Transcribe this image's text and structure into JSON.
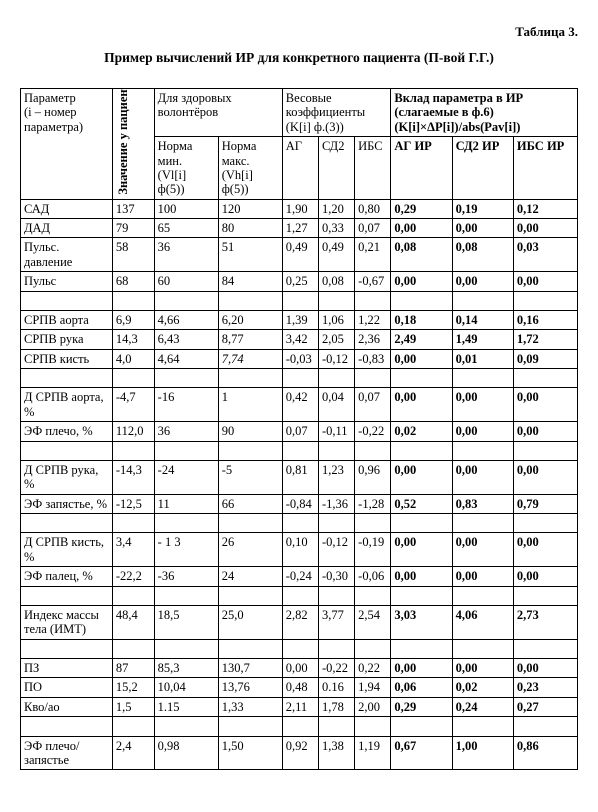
{
  "label": "Таблица 3.",
  "caption": "Пример вычислений ИР для конкретного пациента (П-вой Г.Г.)",
  "head": {
    "param": "Параметр\n(i – номер параметра)",
    "value": "Значение у пациента",
    "healthy": "Для здоровых волонтёров",
    "normMin": "Норма мин.\n(Vl[i]\nф(5))",
    "normMax": "Норма макс.\n(Vh[i]\nф(5))",
    "weights": "Весовые коэффициенты (K[i] ф.(3))",
    "w1": "АГ",
    "w2": "СД2",
    "w3": "ИБС",
    "contrib": "Вклад параметра в ИР (слагаемые в ф.6) (K[i]×ΔP[i])/abs(Pav[i])",
    "c1": "АГ ИР",
    "c2": "СД2 ИР",
    "c3": "ИБС ИР"
  },
  "rows": [
    {
      "p": "САД",
      "v": "137",
      "nmin": "100",
      "nmax": "120",
      "w": [
        "1,90",
        "1,20",
        "0,80"
      ],
      "c": [
        "0,29",
        "0,19",
        "0,12"
      ]
    },
    {
      "p": "ДАД",
      "v": "79",
      "nmin": "65",
      "nmax": "80",
      "w": [
        "1,27",
        "0,33",
        "0,07"
      ],
      "c": [
        "0,00",
        "0,00",
        "0,00"
      ]
    },
    {
      "p": "Пульс. давление",
      "v": "58",
      "nmin": "36",
      "nmax": "51",
      "w": [
        "0,49",
        "0,49",
        "0,21"
      ],
      "c": [
        "0,08",
        "0,08",
        "0,03"
      ]
    },
    {
      "p": "Пульс",
      "v": "68",
      "nmin": "60",
      "nmax": "84",
      "w": [
        "0,25",
        "0,08",
        "-0,67"
      ],
      "c": [
        "0,00",
        "0,00",
        "0,00"
      ]
    },
    {
      "blank": true
    },
    {
      "p": "СРПВ аорта",
      "v": "6,9",
      "nmin": "4,66",
      "nmax": "6,20",
      "w": [
        "1,39",
        "1,06",
        "1,22"
      ],
      "c": [
        "0,18",
        "0,14",
        "0,16"
      ]
    },
    {
      "p": "СРПВ рука",
      "v": "14,3",
      "nmin": "6,43",
      "nmax": "8,77",
      "w": [
        "3,42",
        "2,05",
        "2,36"
      ],
      "c": [
        "2,49",
        "1,49",
        "1,72"
      ]
    },
    {
      "p": "СРПВ кисть",
      "v": "4,0",
      "nmin": "4,64",
      "nmax": "7,74",
      "nmaxItalic": true,
      "w": [
        "-0,03",
        "-0,12",
        "-0,83"
      ],
      "c": [
        "0,00",
        "0,01",
        "0,09"
      ]
    },
    {
      "blank": true
    },
    {
      "p": "Д СРПВ аорта, %",
      "v": "-4,7",
      "nmin": "-16",
      "nmax": "1",
      "w": [
        "0,42",
        "0,04",
        "0,07"
      ],
      "c": [
        "0,00",
        "0,00",
        "0,00"
      ]
    },
    {
      "p": "ЭФ плечо, %",
      "v": "112,0",
      "nmin": "36",
      "nmax": "90",
      "w": [
        "0,07",
        "-0,11",
        "-0,22"
      ],
      "c": [
        "0,02",
        "0,00",
        "0,00"
      ]
    },
    {
      "blank": true
    },
    {
      "p": "Д СРПВ рука, %",
      "v": "-14,3",
      "nmin": "-24",
      "nmax": "-5",
      "w": [
        "0,81",
        "1,23",
        "0,96"
      ],
      "c": [
        "0,00",
        "0,00",
        "0,00"
      ]
    },
    {
      "p": "ЭФ запястье, %",
      "v": "-12,5",
      "nmin": "11",
      "nmax": "66",
      "w": [
        "-0,84",
        "-1,36",
        "-1,28"
      ],
      "c": [
        "0,52",
        "0,83",
        "0,79"
      ]
    },
    {
      "blank": true
    },
    {
      "p": "Д СРПВ кисть, %",
      "v": "3,4",
      "nmin": "- 1 3",
      "nmax": "26",
      "w": [
        "0,10",
        "-0,12",
        "-0,19"
      ],
      "c": [
        "0,00",
        "0,00",
        "0,00"
      ]
    },
    {
      "p": "ЭФ палец, %",
      "v": "-22,2",
      "nmin": "-36",
      "nmax": "24",
      "w": [
        "-0,24",
        "-0,30",
        "-0,06"
      ],
      "c": [
        "0,00",
        "0,00",
        "0,00"
      ]
    },
    {
      "blank": true
    },
    {
      "p": "Индекс массы тела (ИМТ)",
      "v": "48,4",
      "nmin": "18,5",
      "nmax": "25,0",
      "w": [
        "2,82",
        "3,77",
        "2,54"
      ],
      "c": [
        "3,03",
        "4,06",
        "2,73"
      ]
    },
    {
      "blank": true
    },
    {
      "p": "ПЗ",
      "v": "87",
      "nmin": "85,3",
      "nmax": "130,7",
      "w": [
        "0,00",
        "-0,22",
        "0,22"
      ],
      "c": [
        "0,00",
        "0,00",
        "0,00"
      ]
    },
    {
      "p": "ПО",
      "v": "15,2",
      "nmin": "10,04",
      "nmax": "13,76",
      "w": [
        "0,48",
        "0.16",
        "1,94"
      ],
      "c": [
        "0,06",
        "0,02",
        "0,23"
      ]
    },
    {
      "p": "Кво/ао",
      "v": "1,5",
      "nmin": "1.15",
      "nmax": "1,33",
      "w": [
        "2,11",
        "1,78",
        "2,00"
      ],
      "c": [
        "0,29",
        "0,24",
        "0,27"
      ]
    },
    {
      "blank": true
    },
    {
      "p": "ЭФ плечо/запястье",
      "v": "2,4",
      "nmin": "0,98",
      "nmax": "1,50",
      "w": [
        "0,92",
        "1,38",
        "1,19"
      ],
      "c": [
        "0,67",
        "1,00",
        "0,86"
      ]
    }
  ]
}
